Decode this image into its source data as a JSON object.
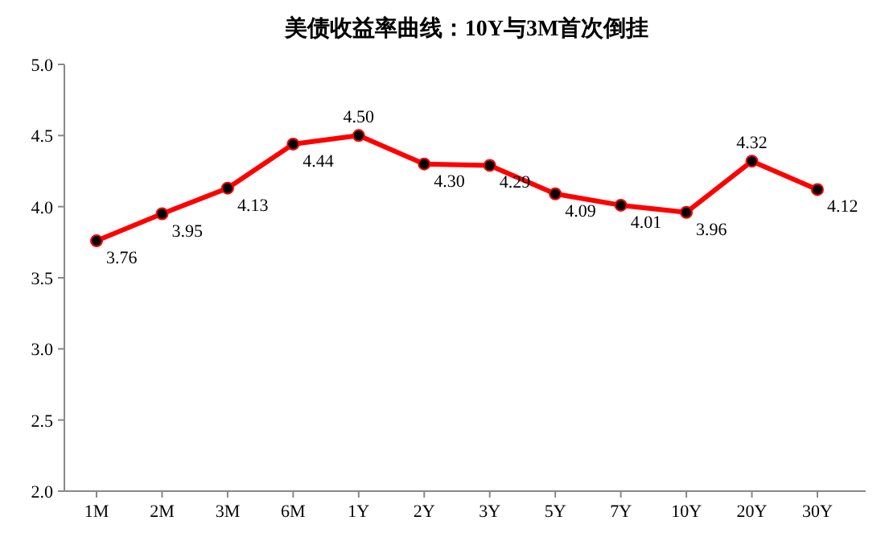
{
  "chart_data": {
    "type": "line",
    "title": "美债收益率曲线：10Y与3M首次倒挂",
    "categories": [
      "1M",
      "2M",
      "3M",
      "6M",
      "1Y",
      "2Y",
      "3Y",
      "5Y",
      "7Y",
      "10Y",
      "20Y",
      "30Y"
    ],
    "series": [
      {
        "color": "#ff0000",
        "values": [
          3.76,
          3.95,
          4.13,
          4.44,
          4.5,
          4.3,
          4.29,
          4.09,
          4.01,
          3.96,
          4.32,
          4.12
        ],
        "value_labels": [
          "3.76",
          "3.95",
          "4.13",
          "4.44",
          "4.50",
          "4.30",
          "4.29",
          "4.09",
          "4.01",
          "3.96",
          "4.32",
          "4.12"
        ]
      }
    ],
    "ylim": [
      2,
      5
    ],
    "yticks": [
      {
        "value": 2,
        "label": "2.0"
      },
      {
        "value": 2.5,
        "label": "2.5"
      },
      {
        "value": 3,
        "label": "3.0"
      },
      {
        "value": 3.5,
        "label": "3.5"
      },
      {
        "value": 4,
        "label": "4.0"
      },
      {
        "value": 4.5,
        "label": "4.5"
      },
      {
        "value": 5,
        "label": "5.0"
      }
    ],
    "marker": "circle",
    "grid": false
  }
}
